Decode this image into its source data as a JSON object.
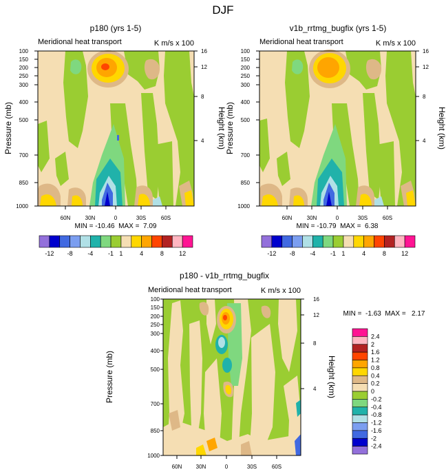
{
  "page_title": "DJF",
  "chart_data": [
    {
      "type": "contour",
      "title": "p180 (yrs 1-5)",
      "subtitle_left": "Meridional heat transport",
      "subtitle_right": "K m/s x 100",
      "ylabel": "Pressure (mb)",
      "ylabel_right": "Height (km)",
      "x_ticks": [
        "60N",
        "30N",
        "0",
        "30S",
        "60S"
      ],
      "y_ticks": [
        "100",
        "150",
        "200",
        "250",
        "300",
        "400",
        "500",
        "700",
        "850",
        "1000"
      ],
      "y2_ticks": [
        "16",
        "12",
        "8",
        "4"
      ],
      "min_max": "MIN = -10.46  MAX =  7.09"
    },
    {
      "type": "contour",
      "title": "v1b_rrtmg_bugfix (yrs 1-5)",
      "subtitle_left": "Meridional heat transport",
      "subtitle_right": "K m/s x 100",
      "ylabel": "Pressure (mb)",
      "ylabel_right": "Height (km)",
      "x_ticks": [
        "60N",
        "30N",
        "0",
        "30S",
        "60S"
      ],
      "y_ticks": [
        "100",
        "150",
        "200",
        "250",
        "300",
        "400",
        "500",
        "700",
        "850",
        "1000"
      ],
      "y2_ticks": [
        "16",
        "12",
        "8",
        "4"
      ],
      "min_max": "MIN = -10.79  MAX =  6.38"
    },
    {
      "type": "contour",
      "title": "p180 - v1b_rrtmg_bugfix",
      "subtitle_left": "Meridional heat transport",
      "subtitle_right": "K m/s x 100",
      "ylabel": "Pressure (mb)",
      "ylabel_right": "Height (km)",
      "x_ticks": [
        "60N",
        "30N",
        "0",
        "30S",
        "60S"
      ],
      "y_ticks": [
        "100",
        "150",
        "200",
        "250",
        "300",
        "400",
        "500",
        "700",
        "850",
        "1000"
      ],
      "y2_ticks": [
        "16",
        "12",
        "8",
        "4"
      ],
      "min_max": "MIN =  -1.63  MAX =   2.17"
    }
  ],
  "colorbar_top": {
    "colors": [
      "#9370db",
      "#0000cd",
      "#4169e1",
      "#7b9ef0",
      "#b0e0e6",
      "#20b2aa",
      "#7fd87f",
      "#9acd32",
      "#f5deb3",
      "#ffd700",
      "#ffa500",
      "#ff4500",
      "#b22222",
      "#ffb6c1",
      "#ff1493"
    ],
    "labels": [
      "-12",
      "-8",
      "-4",
      "-1",
      "1",
      "4",
      "8",
      "12"
    ]
  },
  "colorbar_diff": {
    "colors": [
      "#ff1493",
      "#ffb6c1",
      "#b22222",
      "#ff4500",
      "#ffa500",
      "#ffd700",
      "#deb887",
      "#f5deb3",
      "#9acd32",
      "#7fd87f",
      "#20b2aa",
      "#b0e0e6",
      "#7b9ef0",
      "#4169e1",
      "#0000cd",
      "#9370db"
    ],
    "labels": [
      "2.4",
      "2",
      "1.6",
      "1.2",
      "0.8",
      "0.4",
      "0.2",
      "0",
      "-0.2",
      "-0.4",
      "-0.8",
      "-1.2",
      "-1.6",
      "-2",
      "-2.4"
    ]
  },
  "colors": {
    "tan": "#f5deb3",
    "green": "#9acd32",
    "lightgreen": "#7fd87f",
    "brown": "#deb887",
    "yellow": "#ffd700",
    "orange": "#ffa500",
    "red": "#ff4500",
    "teal": "#20b2aa",
    "cyan": "#b0e0e6",
    "blue": "#4169e1",
    "darkblue": "#0000cd",
    "purple": "#9370db"
  }
}
